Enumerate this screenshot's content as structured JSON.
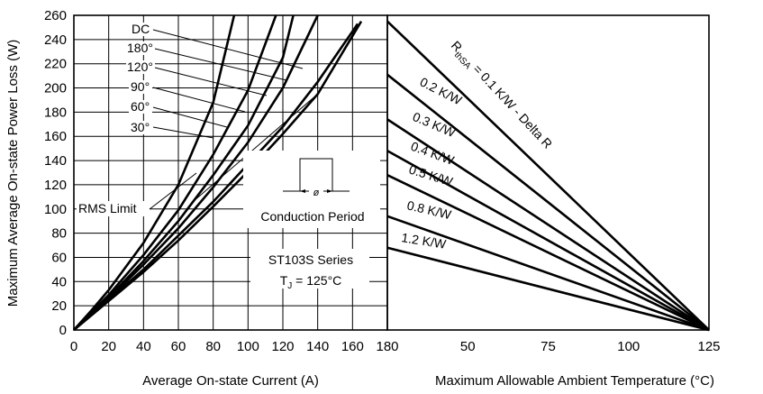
{
  "chart_data": [
    {
      "type": "line",
      "panel": "left",
      "xlabel": "Average On-state Current (A)",
      "ylabel": "Maximum Average On-state Power Loss (W)",
      "xlim": [
        0,
        180
      ],
      "ylim": [
        0,
        260
      ],
      "xticks": [
        0,
        20,
        40,
        60,
        80,
        100,
        120,
        140,
        160,
        180
      ],
      "yticks": [
        0,
        20,
        40,
        60,
        80,
        100,
        120,
        140,
        160,
        180,
        200,
        220,
        240,
        260
      ],
      "grid": true,
      "series": [
        {
          "name": "30°",
          "x": [
            0,
            10,
            20,
            40,
            60,
            80,
            92
          ],
          "y": [
            0,
            16,
            33,
            72,
            120,
            188,
            260
          ]
        },
        {
          "name": "60°",
          "x": [
            0,
            20,
            40,
            60,
            80,
            100,
            116
          ],
          "y": [
            0,
            29,
            62,
            99,
            145,
            198,
            260
          ]
        },
        {
          "name": "90°",
          "x": [
            0,
            20,
            40,
            60,
            80,
            100,
            120,
            126
          ],
          "y": [
            0,
            27,
            57,
            90,
            128,
            169,
            225,
            260
          ]
        },
        {
          "name": "120°",
          "x": [
            0,
            20,
            40,
            60,
            80,
            100,
            120,
            140
          ],
          "y": [
            0,
            26,
            54,
            84,
            118,
            155,
            200,
            260
          ]
        },
        {
          "name": "180°",
          "x": [
            0,
            20,
            40,
            60,
            80,
            100,
            120,
            140,
            163
          ],
          "y": [
            0,
            25,
            50,
            78,
            106,
            137,
            168,
            205,
            253
          ]
        },
        {
          "name": "DC",
          "x": [
            0,
            20,
            40,
            60,
            80,
            100,
            120,
            140,
            165
          ],
          "y": [
            0,
            24,
            48,
            74,
            102,
            131,
            162,
            195,
            255
          ]
        }
      ],
      "rms_limit": {
        "name": "RMS Limit",
        "x": [
          70,
          140,
          165
        ],
        "y": [
          108,
          195,
          255
        ]
      },
      "annotations": {
        "conduction": "Conduction Period",
        "phi": "ø",
        "series_title": "ST103S Series",
        "tj_prefix": "T",
        "tj_sub": "J",
        "tj_suffix": " = 125°C"
      }
    },
    {
      "type": "line",
      "panel": "right",
      "xlabel": "Maximum Allowable Ambient Temperature (°C)",
      "xlim": [
        25,
        125
      ],
      "xticks": [
        50,
        75,
        100,
        125
      ],
      "grid": false,
      "series": [
        {
          "name": "R thSA = 0.1 K/W - Delta R",
          "x": [
            25,
            125
          ],
          "y": [
            255,
            0
          ]
        },
        {
          "name": "0.2 K/W",
          "x": [
            25,
            125
          ],
          "y": [
            211,
            0
          ]
        },
        {
          "name": "0.3 K/W",
          "x": [
            25,
            125
          ],
          "y": [
            174,
            0
          ]
        },
        {
          "name": "0.4 K/W",
          "x": [
            25,
            125
          ],
          "y": [
            148,
            0
          ]
        },
        {
          "name": "0.5 K/W",
          "x": [
            25,
            125
          ],
          "y": [
            128,
            0
          ]
        },
        {
          "name": "0.8 K/W",
          "x": [
            25,
            125
          ],
          "y": [
            94,
            0
          ]
        },
        {
          "name": "1.2 K/W",
          "x": [
            25,
            125
          ],
          "y": [
            68,
            0
          ]
        }
      ],
      "line_labels": {
        "r_main": "R",
        "r_sub": "thSA",
        "r_rest": " = 0.1 K/W - Delta R",
        "k02": "0.2 K/W",
        "k03": "0.3 K/W",
        "k04": "0.4 K/W",
        "k05": "0.5 K/W",
        "k08": "0.8 K/W",
        "k12": "1.2 K/W"
      }
    }
  ]
}
